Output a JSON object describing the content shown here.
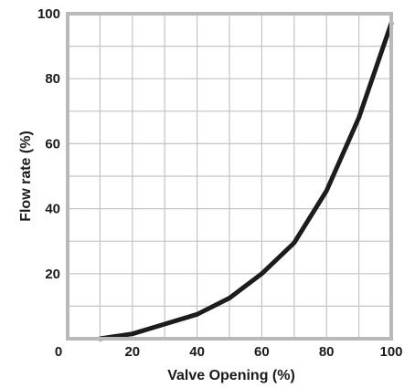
{
  "chart_data": {
    "type": "line",
    "xlabel": "Valve Opening (%)",
    "ylabel": "Flow rate (%)",
    "xlim": [
      0,
      100
    ],
    "ylim": [
      0,
      100
    ],
    "x_ticks": [
      "0",
      "20",
      "40",
      "60",
      "80",
      "100"
    ],
    "y_ticks": [
      "20",
      "40",
      "60",
      "80",
      "100"
    ],
    "grid": true,
    "series": [
      {
        "x": [
          10,
          20,
          30,
          40,
          50,
          60,
          70,
          80,
          90,
          100
        ],
        "y": [
          0,
          1.5,
          4.5,
          7.5,
          12.5,
          20,
          29.5,
          45.5,
          68,
          97
        ],
        "color": "#1c1c1c"
      }
    ]
  }
}
